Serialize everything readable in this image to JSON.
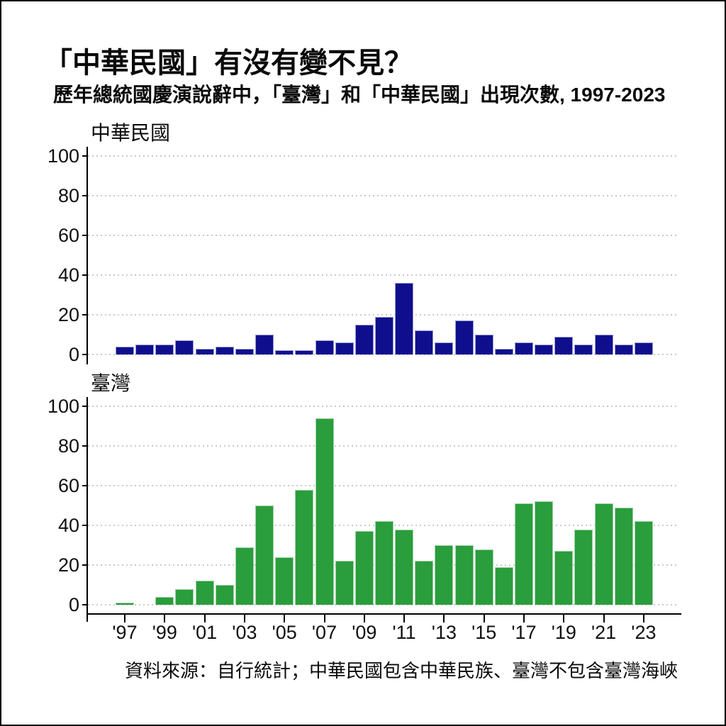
{
  "header": {
    "title": "「中華民國」有沒有變不見？",
    "subtitle": "歷年總統國慶演說辭中，「臺灣」和「中華民國」出現次數, 1997-2023"
  },
  "footer": {
    "source_note": "資料來源：自行統計；中華民國包含中華民族、臺灣不包含臺灣海峽"
  },
  "chart_data": {
    "type": "bar",
    "categories": [
      1997,
      1998,
      1999,
      2000,
      2001,
      2002,
      2003,
      2004,
      2005,
      2006,
      2007,
      2008,
      2009,
      2010,
      2011,
      2012,
      2013,
      2014,
      2015,
      2016,
      2017,
      2018,
      2019,
      2020,
      2021,
      2022,
      2023
    ],
    "x_tick_labels": [
      "'97",
      "'99",
      "'01",
      "'03",
      "'05",
      "'07",
      "'09",
      "'11",
      "'13",
      "'15",
      "'17",
      "'19",
      "'21",
      "'23"
    ],
    "series": [
      {
        "name": "中華民國",
        "color": "#0f0f8e",
        "edge_color": "#9a9ad2",
        "values": [
          4,
          5,
          5,
          7,
          3,
          4,
          3,
          10,
          2,
          2,
          7,
          6,
          15,
          19,
          36,
          12,
          6,
          17,
          10,
          3,
          6,
          5,
          9,
          5,
          10,
          5,
          6
        ]
      },
      {
        "name": "臺灣",
        "color": "#2a9d3c",
        "edge_color": "#9ed2a6",
        "values": [
          1,
          0,
          4,
          8,
          12,
          10,
          29,
          50,
          24,
          58,
          94,
          22,
          37,
          42,
          38,
          22,
          30,
          30,
          28,
          19,
          51,
          52,
          27,
          38,
          51,
          49,
          42
        ]
      }
    ],
    "ylim": [
      0,
      100
    ],
    "yticks": [
      0,
      20,
      40,
      60,
      80,
      100
    ],
    "grid": "dotted-horizontal",
    "legend": "none"
  }
}
